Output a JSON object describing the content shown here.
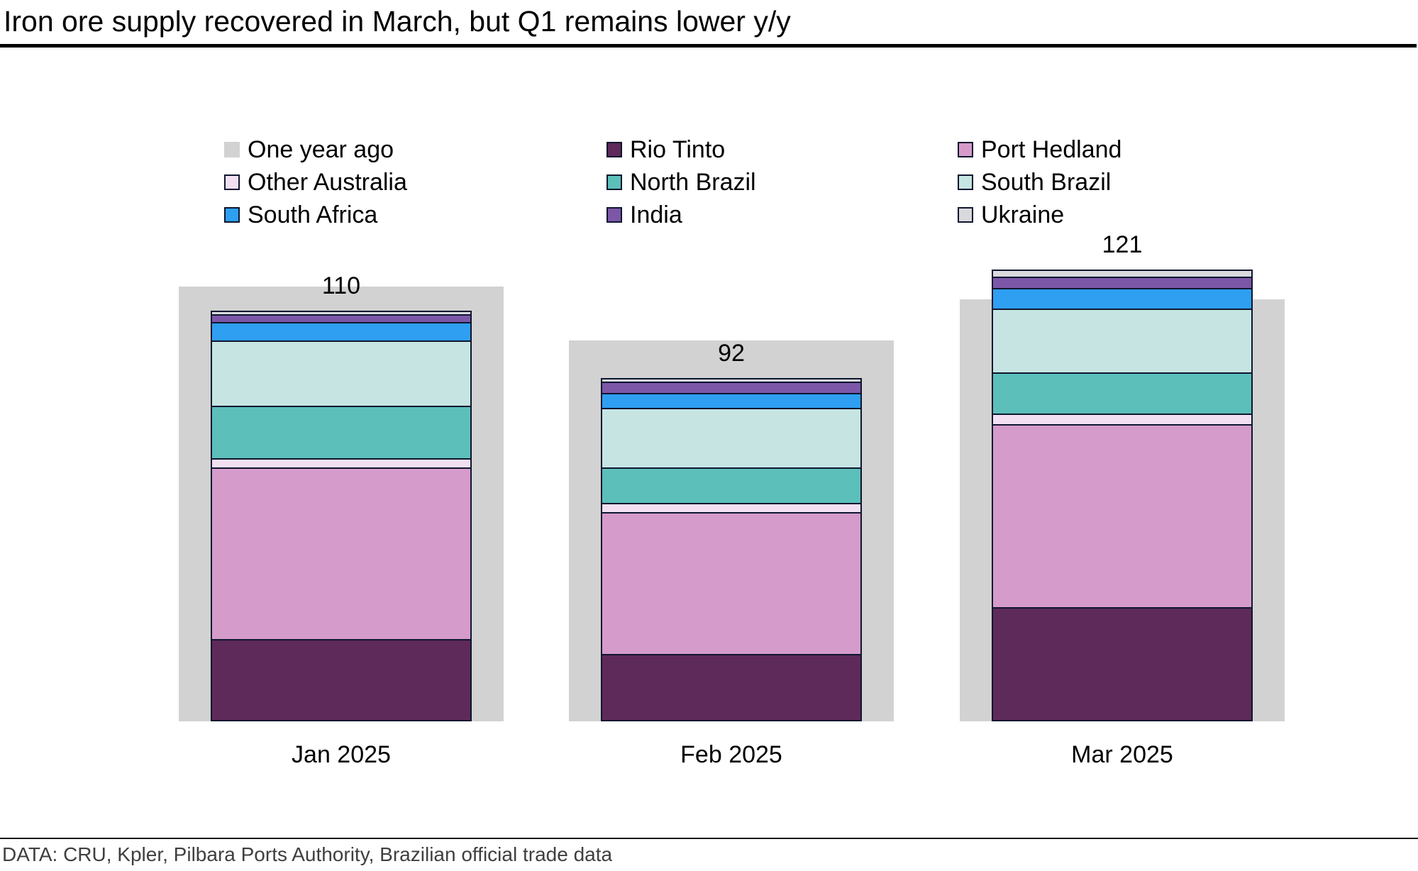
{
  "title": "Iron ore supply recovered in March, but Q1 remains lower y/y",
  "source": "DATA: CRU, Kpler, Pilbara Ports Authority, Brazilian official trade data",
  "colors": {
    "segment_border": "#0E162E",
    "one_year_ago": "#D2D2D2",
    "title_rule": "#000000",
    "footer_rule": "#1A1A1A",
    "footer_text": "#3F3F3F"
  },
  "legend": {
    "items": [
      {
        "label": "One year ago",
        "color": "#D2D2D2",
        "bordered": false
      },
      {
        "label": "Rio Tinto",
        "color": "#5E2A59",
        "bordered": true
      },
      {
        "label": "Port Hedland",
        "color": "#D59BCA",
        "bordered": true
      },
      {
        "label": "Other Australia",
        "color": "#F2DFF2",
        "bordered": true
      },
      {
        "label": "North Brazil",
        "color": "#5CBFBA",
        "bordered": true
      },
      {
        "label": "South Brazil",
        "color": "#C6E5E2",
        "bordered": true
      },
      {
        "label": "South Africa",
        "color": "#2F9FF2",
        "bordered": true
      },
      {
        "label": "India",
        "color": "#7C57A8",
        "bordered": true
      },
      {
        "label": "Ukraine",
        "color": "#D9D9DE",
        "bordered": true
      }
    ]
  },
  "chart_data": {
    "type": "bar",
    "stacked": true,
    "grid": false,
    "legend_position": "top",
    "categories": [
      "Jan 2025",
      "Feb 2025",
      "Mar 2025"
    ],
    "totals": [
      110,
      92,
      121
    ],
    "one_year_ago": {
      "name": "One year ago",
      "values": [
        116.5,
        102,
        113
      ],
      "color": "#D2D2D2"
    },
    "series": [
      {
        "name": "Rio Tinto",
        "color": "#5E2A59",
        "values": [
          22,
          18,
          30.5
        ]
      },
      {
        "name": "Port Hedland",
        "color": "#D59BCA",
        "values": [
          46,
          38,
          49
        ]
      },
      {
        "name": "Other Australia",
        "color": "#F2DFF2",
        "values": [
          2.5,
          2.5,
          3
        ]
      },
      {
        "name": "North Brazil",
        "color": "#5CBFBA",
        "values": [
          14,
          9.5,
          11
        ]
      },
      {
        "name": "South Brazil",
        "color": "#C6E5E2",
        "values": [
          17.5,
          16,
          17
        ]
      },
      {
        "name": "South Africa",
        "color": "#2F9FF2",
        "values": [
          5,
          4,
          5.5
        ]
      },
      {
        "name": "India",
        "color": "#7C57A8",
        "values": [
          2,
          3,
          3
        ]
      },
      {
        "name": "Ukraine",
        "color": "#D9D9DE",
        "values": [
          1,
          1,
          2
        ]
      }
    ]
  }
}
